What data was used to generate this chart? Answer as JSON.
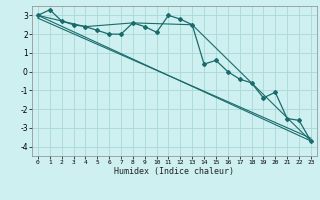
{
  "title": "",
  "xlabel": "Humidex (Indice chaleur)",
  "bg_color": "#cff0f0",
  "grid_color": "#aad8d8",
  "line_color": "#1a6b6b",
  "xlim": [
    -0.5,
    23.5
  ],
  "ylim": [
    -4.5,
    3.5
  ],
  "yticks": [
    -4,
    -3,
    -2,
    -1,
    0,
    1,
    2,
    3
  ],
  "xticks": [
    0,
    1,
    2,
    3,
    4,
    5,
    6,
    7,
    8,
    9,
    10,
    11,
    12,
    13,
    14,
    15,
    16,
    17,
    18,
    19,
    20,
    21,
    22,
    23
  ],
  "series": [
    {
      "x": [
        0,
        1,
        2,
        3,
        4,
        5,
        6,
        7,
        8,
        9,
        10,
        11,
        12,
        13,
        14,
        15,
        16,
        17,
        18,
        19,
        20,
        21,
        22,
        23
      ],
      "y": [
        3.0,
        3.3,
        2.7,
        2.5,
        2.4,
        2.2,
        2.0,
        2.0,
        2.6,
        2.4,
        2.1,
        3.0,
        2.8,
        2.5,
        0.4,
        0.6,
        0.0,
        -0.4,
        -0.6,
        -1.4,
        -1.1,
        -2.5,
        -2.6,
        -3.7
      ],
      "marker": "D",
      "markersize": 2.0,
      "linewidth": 0.9
    },
    {
      "x": [
        0,
        4,
        8,
        13,
        18,
        23
      ],
      "y": [
        3.0,
        2.4,
        2.6,
        2.5,
        -0.6,
        -3.7
      ],
      "marker": null,
      "linewidth": 0.8
    },
    {
      "x": [
        0,
        23
      ],
      "y": [
        3.0,
        -3.7
      ],
      "marker": null,
      "linewidth": 0.8
    },
    {
      "x": [
        0,
        23
      ],
      "y": [
        2.85,
        -3.55
      ],
      "marker": null,
      "linewidth": 0.8
    }
  ]
}
